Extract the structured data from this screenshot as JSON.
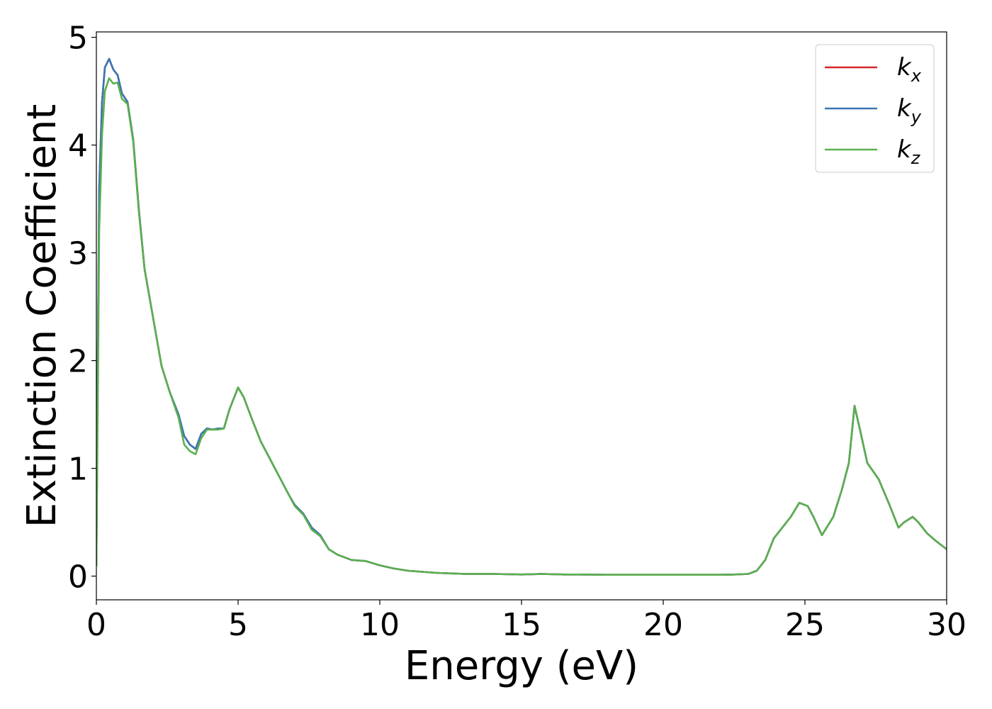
{
  "chart_data": {
    "type": "line",
    "title": "",
    "xlabel": "Energy (eV)",
    "ylabel": "Extinction Coefficient",
    "xlim": [
      0,
      30
    ],
    "ylim": [
      -0.22,
      5.05
    ],
    "xticks": [
      0,
      5,
      10,
      15,
      20,
      25,
      30
    ],
    "yticks": [
      0,
      1,
      2,
      3,
      4,
      5
    ],
    "grid": false,
    "legend_position": "top-right",
    "series": [
      {
        "name": "k",
        "subscript": "x",
        "color": "#d62728",
        "x": [
          0,
          0.05,
          0.1,
          0.2,
          0.3,
          0.45,
          0.6,
          0.75,
          0.9,
          1.1,
          1.3,
          1.5,
          1.7,
          2.0,
          2.3,
          2.6,
          2.9,
          3.1,
          3.3,
          3.5,
          3.7,
          3.9,
          4.1,
          4.3,
          4.5,
          4.7,
          5.0,
          5.2,
          5.5,
          5.8,
          6.1,
          6.5,
          6.8,
          7.0,
          7.3,
          7.6,
          7.9,
          8.2,
          8.5,
          9.0,
          9.5,
          10.0,
          10.5,
          11.0,
          12.0,
          13.0,
          14.0,
          15.0,
          15.7,
          16.5,
          17.0,
          18.0,
          19.0,
          20.0,
          21.0,
          22.0,
          22.5,
          23.0,
          23.3,
          23.6,
          23.9,
          24.2,
          24.5,
          24.8,
          25.1,
          25.3,
          25.6,
          26.0,
          26.3,
          26.55,
          26.75,
          26.95,
          27.2,
          27.6,
          28.0,
          28.3,
          28.5,
          28.8,
          29.0,
          29.3,
          29.6,
          30.0
        ],
        "y": [
          0.1,
          2.0,
          3.6,
          4.4,
          4.72,
          4.8,
          4.7,
          4.65,
          4.48,
          4.4,
          4.05,
          3.4,
          2.85,
          2.4,
          1.95,
          1.7,
          1.5,
          1.3,
          1.22,
          1.18,
          1.32,
          1.37,
          1.36,
          1.37,
          1.37,
          1.55,
          1.75,
          1.66,
          1.45,
          1.25,
          1.1,
          0.9,
          0.75,
          0.66,
          0.58,
          0.45,
          0.38,
          0.25,
          0.2,
          0.15,
          0.14,
          0.1,
          0.07,
          0.05,
          0.03,
          0.02,
          0.02,
          0.015,
          0.02,
          0.015,
          0.015,
          0.012,
          0.012,
          0.012,
          0.012,
          0.012,
          0.015,
          0.02,
          0.05,
          0.15,
          0.35,
          0.45,
          0.55,
          0.68,
          0.65,
          0.55,
          0.38,
          0.55,
          0.8,
          1.05,
          1.58,
          1.35,
          1.05,
          0.9,
          0.65,
          0.45,
          0.5,
          0.55,
          0.5,
          0.4,
          0.33,
          0.25
        ]
      },
      {
        "name": "k",
        "subscript": "y",
        "color": "#3a76b5",
        "x": [
          0,
          0.05,
          0.1,
          0.2,
          0.3,
          0.45,
          0.6,
          0.75,
          0.9,
          1.1,
          1.3,
          1.5,
          1.7,
          2.0,
          2.3,
          2.6,
          2.9,
          3.1,
          3.3,
          3.5,
          3.7,
          3.9,
          4.1,
          4.3,
          4.5,
          4.7,
          5.0,
          5.2,
          5.5,
          5.8,
          6.1,
          6.5,
          6.8,
          7.0,
          7.3,
          7.6,
          7.9,
          8.2,
          8.5,
          9.0,
          9.5,
          10.0,
          10.5,
          11.0,
          12.0,
          13.0,
          14.0,
          15.0,
          15.7,
          16.5,
          17.0,
          18.0,
          19.0,
          20.0,
          21.0,
          22.0,
          22.5,
          23.0,
          23.3,
          23.6,
          23.9,
          24.2,
          24.5,
          24.8,
          25.1,
          25.3,
          25.6,
          26.0,
          26.3,
          26.55,
          26.75,
          26.95,
          27.2,
          27.6,
          28.0,
          28.3,
          28.5,
          28.8,
          29.0,
          29.3,
          29.6,
          30.0
        ],
        "y": [
          0.1,
          2.0,
          3.6,
          4.4,
          4.72,
          4.8,
          4.7,
          4.65,
          4.48,
          4.4,
          4.05,
          3.4,
          2.85,
          2.4,
          1.95,
          1.7,
          1.5,
          1.3,
          1.22,
          1.18,
          1.32,
          1.37,
          1.36,
          1.37,
          1.37,
          1.55,
          1.75,
          1.66,
          1.45,
          1.25,
          1.1,
          0.9,
          0.75,
          0.66,
          0.58,
          0.45,
          0.38,
          0.25,
          0.2,
          0.15,
          0.14,
          0.1,
          0.07,
          0.05,
          0.03,
          0.02,
          0.02,
          0.015,
          0.02,
          0.015,
          0.015,
          0.012,
          0.012,
          0.012,
          0.012,
          0.012,
          0.015,
          0.02,
          0.05,
          0.15,
          0.35,
          0.45,
          0.55,
          0.68,
          0.65,
          0.55,
          0.38,
          0.55,
          0.8,
          1.05,
          1.58,
          1.35,
          1.05,
          0.9,
          0.65,
          0.45,
          0.5,
          0.55,
          0.5,
          0.4,
          0.33,
          0.25
        ]
      },
      {
        "name": "k",
        "subscript": "z",
        "color": "#5aaf4f",
        "x": [
          0,
          0.05,
          0.1,
          0.2,
          0.3,
          0.45,
          0.6,
          0.75,
          0.9,
          1.1,
          1.3,
          1.5,
          1.7,
          2.0,
          2.3,
          2.6,
          2.9,
          3.1,
          3.3,
          3.5,
          3.7,
          3.9,
          4.1,
          4.3,
          4.5,
          4.7,
          5.0,
          5.2,
          5.5,
          5.8,
          6.1,
          6.5,
          6.8,
          7.0,
          7.3,
          7.6,
          7.9,
          8.2,
          8.5,
          9.0,
          9.5,
          10.0,
          10.5,
          11.0,
          12.0,
          13.0,
          14.0,
          15.0,
          15.7,
          16.5,
          17.0,
          18.0,
          19.0,
          20.0,
          21.0,
          22.0,
          22.5,
          23.0,
          23.3,
          23.6,
          23.9,
          24.2,
          24.5,
          24.8,
          25.1,
          25.3,
          25.6,
          26.0,
          26.3,
          26.55,
          26.75,
          26.95,
          27.2,
          27.6,
          28.0,
          28.3,
          28.5,
          28.8,
          29.0,
          29.3,
          29.6,
          30.0
        ],
        "y": [
          0.1,
          1.6,
          3.2,
          4.1,
          4.5,
          4.62,
          4.57,
          4.58,
          4.43,
          4.38,
          4.03,
          3.38,
          2.85,
          2.4,
          1.95,
          1.7,
          1.47,
          1.22,
          1.16,
          1.13,
          1.28,
          1.36,
          1.36,
          1.36,
          1.37,
          1.55,
          1.75,
          1.66,
          1.45,
          1.25,
          1.1,
          0.9,
          0.75,
          0.65,
          0.57,
          0.43,
          0.37,
          0.25,
          0.2,
          0.15,
          0.14,
          0.1,
          0.07,
          0.05,
          0.03,
          0.02,
          0.02,
          0.015,
          0.02,
          0.015,
          0.015,
          0.012,
          0.012,
          0.012,
          0.012,
          0.012,
          0.015,
          0.02,
          0.05,
          0.15,
          0.35,
          0.45,
          0.55,
          0.68,
          0.65,
          0.55,
          0.38,
          0.55,
          0.8,
          1.05,
          1.58,
          1.35,
          1.05,
          0.9,
          0.65,
          0.45,
          0.5,
          0.55,
          0.5,
          0.4,
          0.33,
          0.25
        ]
      }
    ]
  }
}
